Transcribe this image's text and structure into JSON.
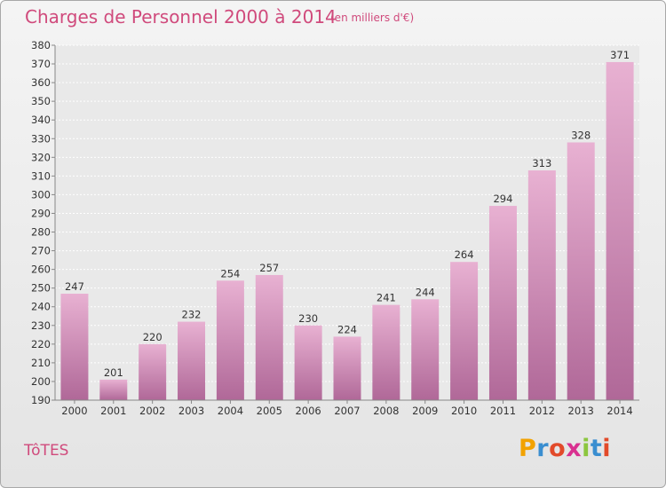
{
  "chart_data": {
    "type": "bar",
    "title": "Charges de Personnel 2000 à 2014",
    "subtitle": "(en milliers d'€)",
    "categories": [
      "2000",
      "2001",
      "2002",
      "2003",
      "2004",
      "2005",
      "2006",
      "2007",
      "2008",
      "2009",
      "2010",
      "2011",
      "2012",
      "2013",
      "2014"
    ],
    "values": [
      247,
      201,
      220,
      232,
      254,
      257,
      230,
      224,
      241,
      244,
      264,
      294,
      313,
      328,
      371
    ],
    "ylim": [
      190,
      380
    ],
    "ytick_step": 10,
    "grid": true,
    "bar_color": "#dba0c4"
  },
  "commune": "TôTES",
  "logo": {
    "text": "Proxiti",
    "colors": [
      "#f2a200",
      "#3a8ed0",
      "#e24a2a",
      "#d93090",
      "#8cc63f",
      "#3a8ed0",
      "#e24a2a"
    ]
  }
}
